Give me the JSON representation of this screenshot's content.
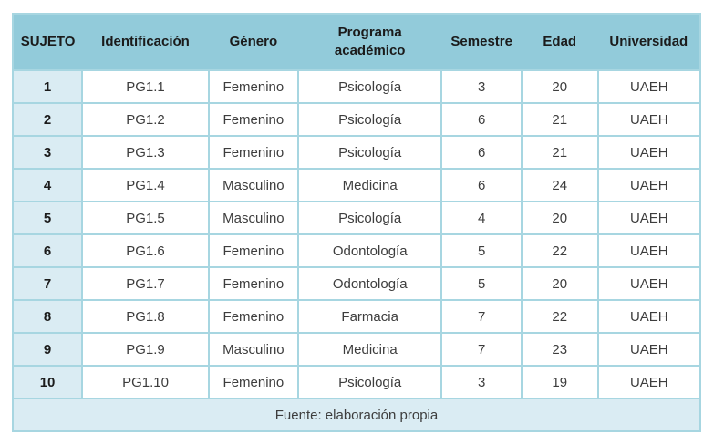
{
  "table": {
    "columns": [
      "SUJETO",
      "Identificación",
      "Género",
      "Programa académico",
      "Semestre",
      "Edad",
      "Universidad"
    ],
    "rows": [
      [
        "1",
        "PG1.1",
        "Femenino",
        "Psicología",
        "3",
        "20",
        "UAEH"
      ],
      [
        "2",
        "PG1.2",
        "Femenino",
        "Psicología",
        "6",
        "21",
        "UAEH"
      ],
      [
        "3",
        "PG1.3",
        "Femenino",
        "Psicología",
        "6",
        "21",
        "UAEH"
      ],
      [
        "4",
        "PG1.4",
        "Masculino",
        "Medicina",
        "6",
        "24",
        "UAEH"
      ],
      [
        "5",
        "PG1.5",
        "Masculino",
        "Psicología",
        "4",
        "20",
        "UAEH"
      ],
      [
        "6",
        "PG1.6",
        "Femenino",
        "Odontología",
        "5",
        "22",
        "UAEH"
      ],
      [
        "7",
        "PG1.7",
        "Femenino",
        "Odontología",
        "5",
        "20",
        "UAEH"
      ],
      [
        "8",
        "PG1.8",
        "Femenino",
        "Farmacia",
        "7",
        "22",
        "UAEH"
      ],
      [
        "9",
        "PG1.9",
        "Masculino",
        "Medicina",
        "7",
        "23",
        "UAEH"
      ],
      [
        "10",
        "PG1.10",
        "Femenino",
        "Psicología",
        "3",
        "19",
        "UAEH"
      ]
    ],
    "footer": "Fuente: elaboración propia"
  },
  "colors": {
    "header_bg": "#92cbda",
    "accent_bg": "#daecf3",
    "border": "#a7d6e1"
  }
}
